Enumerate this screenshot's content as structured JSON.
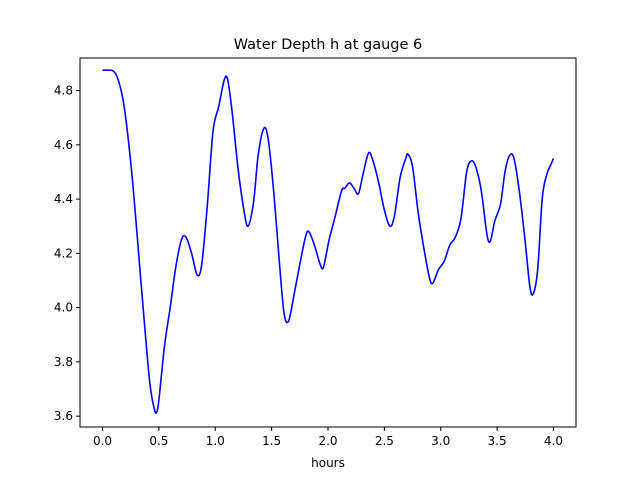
{
  "chart_data": {
    "type": "line",
    "title": "Water Depth h at gauge 6",
    "xlabel": "hours",
    "ylabel": "",
    "xlim": [
      -0.2,
      4.2
    ],
    "ylim": [
      3.56,
      4.92
    ],
    "grid": false,
    "x_ticks": [
      0.0,
      0.5,
      1.0,
      1.5,
      2.0,
      2.5,
      3.0,
      3.5,
      4.0
    ],
    "x_tick_labels": [
      "0.0",
      "0.5",
      "1.0",
      "1.5",
      "2.0",
      "2.5",
      "3.0",
      "3.5",
      "4.0"
    ],
    "y_ticks": [
      3.6,
      3.8,
      4.0,
      4.2,
      4.4,
      4.6,
      4.8
    ],
    "y_tick_labels": [
      "3.6",
      "3.8",
      "4.0",
      "4.2",
      "4.4",
      "4.6",
      "4.8"
    ],
    "series": [
      {
        "color": "#0000ff",
        "points": [
          [
            0.0,
            4.875
          ],
          [
            0.05,
            4.875
          ],
          [
            0.09,
            4.873
          ],
          [
            0.13,
            4.85
          ],
          [
            0.18,
            4.77
          ],
          [
            0.22,
            4.65
          ],
          [
            0.27,
            4.45
          ],
          [
            0.32,
            4.2
          ],
          [
            0.37,
            3.95
          ],
          [
            0.42,
            3.72
          ],
          [
            0.46,
            3.625
          ],
          [
            0.48,
            3.615
          ],
          [
            0.5,
            3.66
          ],
          [
            0.55,
            3.86
          ],
          [
            0.6,
            4.0
          ],
          [
            0.65,
            4.15
          ],
          [
            0.7,
            4.25
          ],
          [
            0.74,
            4.26
          ],
          [
            0.79,
            4.2
          ],
          [
            0.84,
            4.12
          ],
          [
            0.88,
            4.16
          ],
          [
            0.93,
            4.38
          ],
          [
            0.98,
            4.65
          ],
          [
            1.03,
            4.74
          ],
          [
            1.08,
            4.84
          ],
          [
            1.11,
            4.84
          ],
          [
            1.15,
            4.72
          ],
          [
            1.2,
            4.52
          ],
          [
            1.25,
            4.37
          ],
          [
            1.29,
            4.3
          ],
          [
            1.34,
            4.39
          ],
          [
            1.38,
            4.56
          ],
          [
            1.43,
            4.66
          ],
          [
            1.47,
            4.62
          ],
          [
            1.52,
            4.42
          ],
          [
            1.57,
            4.16
          ],
          [
            1.61,
            3.98
          ],
          [
            1.65,
            3.95
          ],
          [
            1.7,
            4.05
          ],
          [
            1.75,
            4.16
          ],
          [
            1.8,
            4.26
          ],
          [
            1.83,
            4.28
          ],
          [
            1.88,
            4.23
          ],
          [
            1.93,
            4.16
          ],
          [
            1.96,
            4.15
          ],
          [
            2.01,
            4.25
          ],
          [
            2.06,
            4.33
          ],
          [
            2.12,
            4.43
          ],
          [
            2.15,
            4.44
          ],
          [
            2.19,
            4.46
          ],
          [
            2.23,
            4.44
          ],
          [
            2.27,
            4.42
          ],
          [
            2.31,
            4.49
          ],
          [
            2.36,
            4.57
          ],
          [
            2.4,
            4.54
          ],
          [
            2.45,
            4.46
          ],
          [
            2.5,
            4.36
          ],
          [
            2.55,
            4.3
          ],
          [
            2.59,
            4.34
          ],
          [
            2.64,
            4.48
          ],
          [
            2.69,
            4.55
          ],
          [
            2.71,
            4.565
          ],
          [
            2.75,
            4.52
          ],
          [
            2.8,
            4.35
          ],
          [
            2.85,
            4.22
          ],
          [
            2.9,
            4.11
          ],
          [
            2.93,
            4.09
          ],
          [
            2.98,
            4.14
          ],
          [
            3.03,
            4.17
          ],
          [
            3.08,
            4.23
          ],
          [
            3.13,
            4.26
          ],
          [
            3.18,
            4.33
          ],
          [
            3.23,
            4.5
          ],
          [
            3.27,
            4.54
          ],
          [
            3.31,
            4.52
          ],
          [
            3.36,
            4.43
          ],
          [
            3.41,
            4.27
          ],
          [
            3.44,
            4.245
          ],
          [
            3.48,
            4.32
          ],
          [
            3.53,
            4.38
          ],
          [
            3.57,
            4.5
          ],
          [
            3.61,
            4.56
          ],
          [
            3.65,
            4.55
          ],
          [
            3.7,
            4.42
          ],
          [
            3.75,
            4.24
          ],
          [
            3.79,
            4.08
          ],
          [
            3.82,
            4.05
          ],
          [
            3.86,
            4.14
          ],
          [
            3.9,
            4.4
          ],
          [
            3.94,
            4.49
          ],
          [
            3.98,
            4.53
          ],
          [
            4.0,
            4.55
          ]
        ]
      }
    ]
  }
}
